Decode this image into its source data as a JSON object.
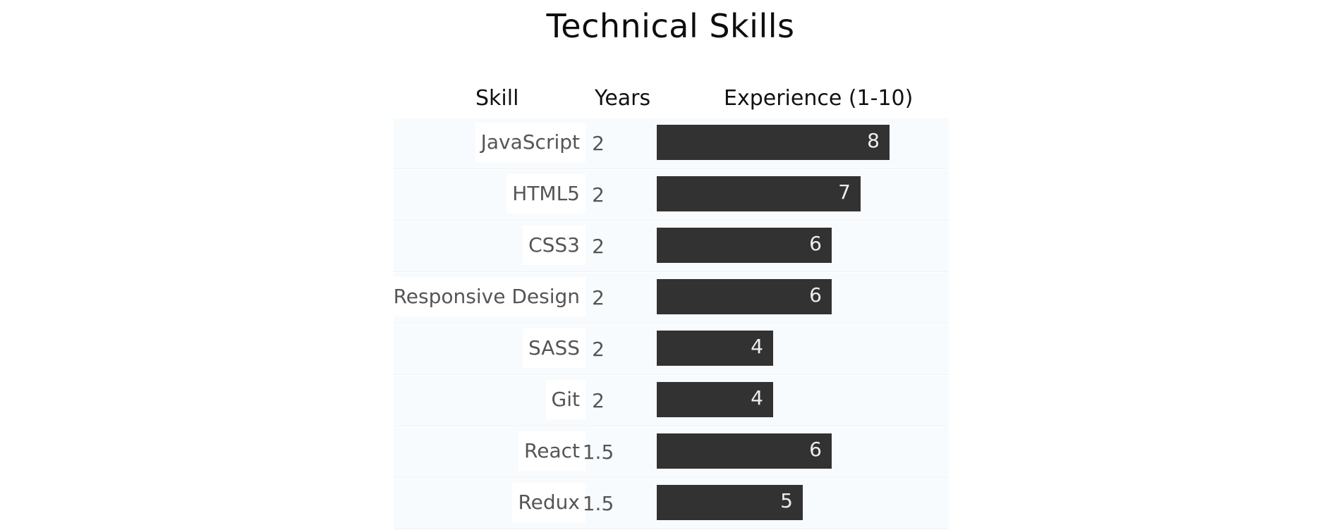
{
  "title": "Technical Skills",
  "headers": {
    "skill": "Skill",
    "years": "Years",
    "experience": "Experience (1-10)"
  },
  "chart_data": {
    "type": "bar",
    "title": "Technical Skills",
    "columns": [
      "Skill",
      "Years",
      "Experience (1-10)"
    ],
    "categories": [
      "JavaScript",
      "HTML5",
      "CSS3",
      "Responsive Design",
      "SASS",
      "Git",
      "React",
      "Redux"
    ],
    "years": [
      "2",
      "2",
      "2",
      "2",
      "2",
      "2",
      "1.5",
      "1.5"
    ],
    "values": [
      8,
      7,
      6,
      6,
      4,
      4,
      6,
      5
    ],
    "xlim": [
      0,
      10
    ],
    "orientation": "horizontal",
    "bar_color": "#323233"
  }
}
